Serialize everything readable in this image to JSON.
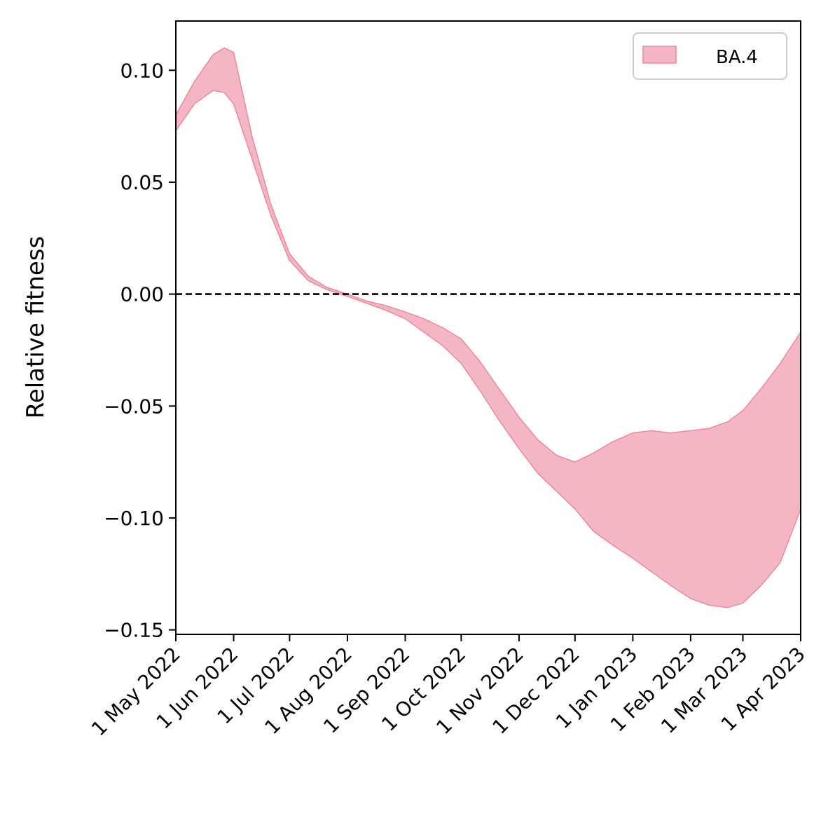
{
  "chart_data": {
    "type": "area",
    "subtype": "band",
    "title": "",
    "xlabel": "",
    "ylabel": "Relative fitness",
    "x_axis_type": "date",
    "xlim": [
      "2022-05-01",
      "2023-04-01"
    ],
    "ylim": [
      -0.152,
      0.122
    ],
    "x_ticks": [
      {
        "date": "2022-05-01",
        "label": "1 May 2022"
      },
      {
        "date": "2022-06-01",
        "label": "1 Jun 2022"
      },
      {
        "date": "2022-07-01",
        "label": "1 Jul 2022"
      },
      {
        "date": "2022-08-01",
        "label": "1 Aug 2022"
      },
      {
        "date": "2022-09-01",
        "label": "1 Sep 2022"
      },
      {
        "date": "2022-10-01",
        "label": "1 Oct 2022"
      },
      {
        "date": "2022-11-01",
        "label": "1 Nov 2022"
      },
      {
        "date": "2022-12-01",
        "label": "1 Dec 2022"
      },
      {
        "date": "2023-01-01",
        "label": "1 Jan 2023"
      },
      {
        "date": "2023-02-01",
        "label": "1 Feb 2023"
      },
      {
        "date": "2023-03-01",
        "label": "1 Mar 2023"
      },
      {
        "date": "2023-04-01",
        "label": "1 Apr 2023"
      }
    ],
    "y_ticks": [
      {
        "value": 0.1,
        "label": "0.10"
      },
      {
        "value": 0.05,
        "label": "0.05"
      },
      {
        "value": 0.0,
        "label": "0.00"
      },
      {
        "value": -0.05,
        "label": "−0.05"
      },
      {
        "value": -0.1,
        "label": "−0.10"
      },
      {
        "value": -0.15,
        "label": "−0.15"
      }
    ],
    "reference_line": {
      "y": 0.0,
      "style": "dashed",
      "color": "#000000"
    },
    "grid": false,
    "legend": {
      "placement": "top-right"
    },
    "series": [
      {
        "name": "BA.4",
        "color": "#f4b6c4",
        "edge_color": "#e88aa0",
        "x": [
          "2022-05-01",
          "2022-05-11",
          "2022-05-21",
          "2022-05-27",
          "2022-06-01",
          "2022-06-11",
          "2022-06-21",
          "2022-07-01",
          "2022-07-11",
          "2022-07-21",
          "2022-08-01",
          "2022-08-11",
          "2022-08-21",
          "2022-09-01",
          "2022-09-11",
          "2022-09-21",
          "2022-10-01",
          "2022-10-11",
          "2022-10-21",
          "2022-11-01",
          "2022-11-11",
          "2022-11-21",
          "2022-12-01",
          "2022-12-11",
          "2022-12-21",
          "2023-01-01",
          "2023-01-11",
          "2023-01-21",
          "2023-02-01",
          "2023-02-11",
          "2023-02-21",
          "2023-03-01",
          "2023-03-11",
          "2023-03-21",
          "2023-04-01"
        ],
        "lower": [
          0.073,
          0.085,
          0.091,
          0.09,
          0.085,
          0.06,
          0.035,
          0.015,
          0.006,
          0.002,
          -0.001,
          -0.004,
          -0.007,
          -0.011,
          -0.017,
          -0.023,
          -0.031,
          -0.043,
          -0.056,
          -0.069,
          -0.08,
          -0.088,
          -0.096,
          -0.106,
          -0.112,
          -0.118,
          -0.124,
          -0.13,
          -0.136,
          -0.139,
          -0.14,
          -0.138,
          -0.13,
          -0.12,
          -0.096
        ],
        "upper": [
          0.08,
          0.095,
          0.107,
          0.11,
          0.108,
          0.07,
          0.04,
          0.018,
          0.008,
          0.003,
          0.0,
          -0.003,
          -0.005,
          -0.008,
          -0.011,
          -0.015,
          -0.02,
          -0.03,
          -0.042,
          -0.055,
          -0.065,
          -0.072,
          -0.075,
          -0.071,
          -0.066,
          -0.062,
          -0.061,
          -0.062,
          -0.061,
          -0.06,
          -0.057,
          -0.052,
          -0.042,
          -0.031,
          -0.017
        ]
      }
    ]
  }
}
